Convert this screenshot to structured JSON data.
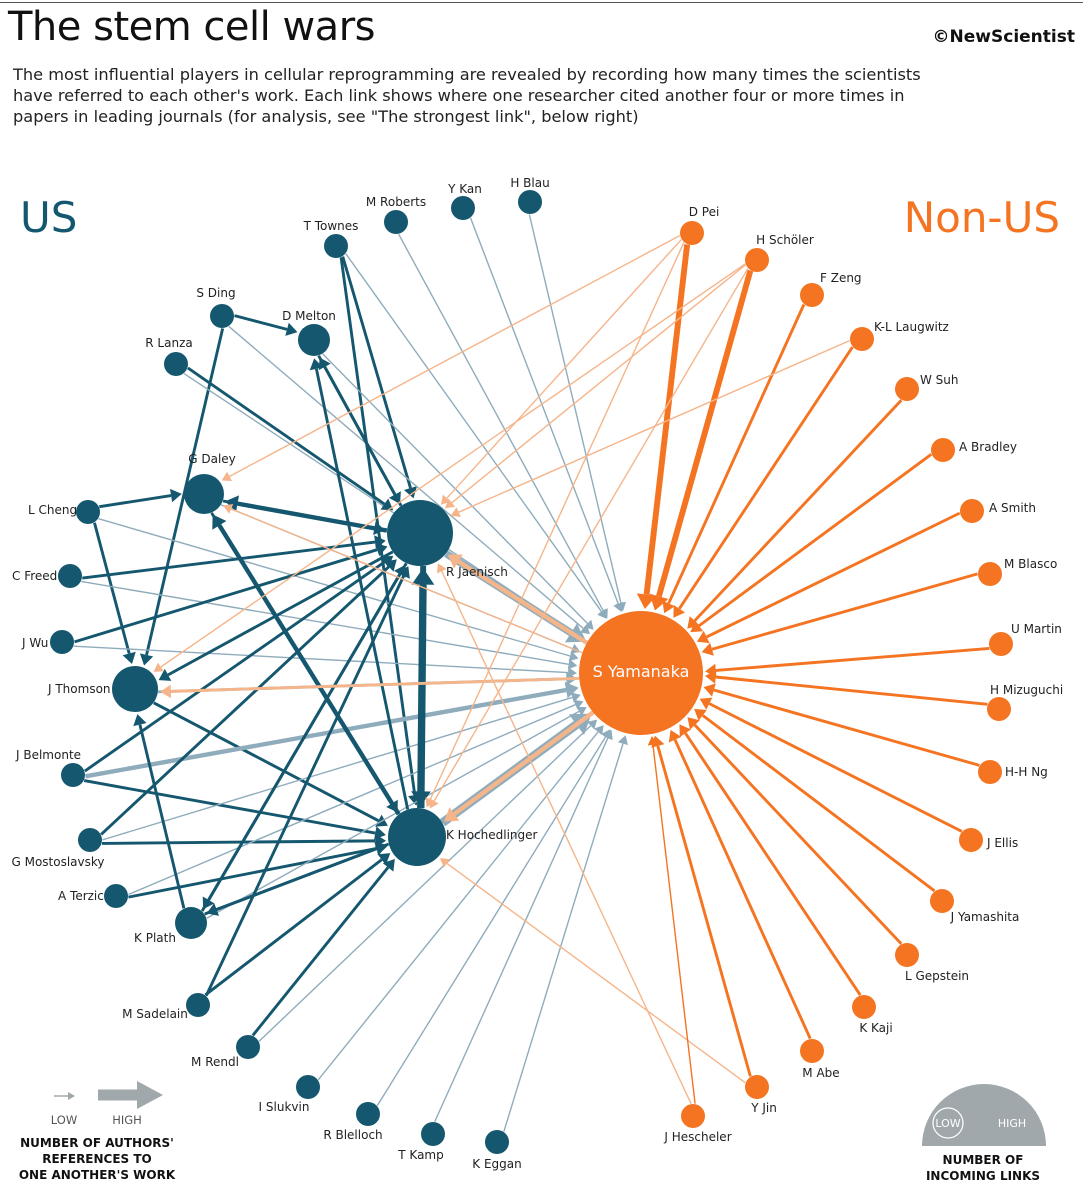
{
  "header": {
    "title": "The stem cell wars",
    "brand": "©NewScientist",
    "subtitle": "The most influential players in cellular reprogramming are revealed by recording how many times the scientists have referred to each other's work. Each link shows where one researcher cited another four or more times in papers in leading journals (for analysis, see \"The strongest link\", below right)"
  },
  "groups": {
    "us": "US",
    "non_us": "Non-US"
  },
  "colors": {
    "us": "#14576e",
    "non_us": "#f47421",
    "us_link": "#8facbc",
    "non_us_link": "#f5b58a",
    "legend_grey": "#a0a8ac"
  },
  "nodes": [
    {
      "id": "mroberts",
      "name": "M Roberts",
      "group": "us",
      "incoming": 0
    },
    {
      "id": "ykan",
      "name": "Y Kan",
      "group": "us",
      "incoming": 0
    },
    {
      "id": "hblau",
      "name": "H Blau",
      "group": "us",
      "incoming": 0
    },
    {
      "id": "ttownes",
      "name": "T Townes",
      "group": "us",
      "incoming": 0
    },
    {
      "id": "sding",
      "name": "S Ding",
      "group": "us",
      "incoming": 0
    },
    {
      "id": "dmelton",
      "name": "D Melton",
      "group": "us",
      "incoming": 2
    },
    {
      "id": "rlanza",
      "name": "R Lanza",
      "group": "us",
      "incoming": 0
    },
    {
      "id": "gdaley",
      "name": "G Daley",
      "group": "us",
      "incoming": 4
    },
    {
      "id": "lcheng",
      "name": "L Cheng",
      "group": "us",
      "incoming": 0
    },
    {
      "id": "cfreed",
      "name": "C Freed",
      "group": "us",
      "incoming": 0
    },
    {
      "id": "jwu",
      "name": "J Wu",
      "group": "us",
      "incoming": 0
    },
    {
      "id": "jthomson",
      "name": "J Thomson",
      "group": "us",
      "incoming": 6
    },
    {
      "id": "jbelmonte",
      "name": "J Belmonte",
      "group": "us",
      "incoming": 0
    },
    {
      "id": "gmosto",
      "name": "G Mostoslavsky",
      "group": "us",
      "incoming": 0
    },
    {
      "id": "aterzic",
      "name": "A Terzic",
      "group": "us",
      "incoming": 0
    },
    {
      "id": "kplath",
      "name": "K Plath",
      "group": "us",
      "incoming": 2
    },
    {
      "id": "msadelain",
      "name": "M Sadelain",
      "group": "us",
      "incoming": 0
    },
    {
      "id": "mrendl",
      "name": "M Rendl",
      "group": "us",
      "incoming": 0
    },
    {
      "id": "islukvin",
      "name": "I Slukvin",
      "group": "us",
      "incoming": 0
    },
    {
      "id": "rblelloch",
      "name": "R Blelloch",
      "group": "us",
      "incoming": 0
    },
    {
      "id": "tkamp",
      "name": "T Kamp",
      "group": "us",
      "incoming": 0
    },
    {
      "id": "keggan",
      "name": "K Eggan",
      "group": "us",
      "incoming": 0
    },
    {
      "id": "rjaenisch",
      "name": "R Jaenisch",
      "group": "us",
      "incoming": 16
    },
    {
      "id": "khoch",
      "name": "K Hochedlinger",
      "group": "us",
      "incoming": 12
    },
    {
      "id": "syamanaka",
      "name": "S Yamanaka",
      "group": "non_us",
      "incoming": 42
    },
    {
      "id": "dpei",
      "name": "D Pei",
      "group": "non_us",
      "incoming": 0
    },
    {
      "id": "hscholer",
      "name": "H Schöler",
      "group": "non_us",
      "incoming": 0
    },
    {
      "id": "fzeng",
      "name": "F Zeng",
      "group": "non_us",
      "incoming": 0
    },
    {
      "id": "klaugwitz",
      "name": "K-L Laugwitz",
      "group": "non_us",
      "incoming": 0
    },
    {
      "id": "wsuh",
      "name": "W Suh",
      "group": "non_us",
      "incoming": 0
    },
    {
      "id": "abradley",
      "name": "A Bradley",
      "group": "non_us",
      "incoming": 0
    },
    {
      "id": "asmith",
      "name": "A Smith",
      "group": "non_us",
      "incoming": 0
    },
    {
      "id": "mblasco",
      "name": "M Blasco",
      "group": "non_us",
      "incoming": 0
    },
    {
      "id": "umartin",
      "name": "U Martin",
      "group": "non_us",
      "incoming": 0
    },
    {
      "id": "hmizuguchi",
      "name": "H Mizuguchi",
      "group": "non_us",
      "incoming": 0
    },
    {
      "id": "hhng",
      "name": "H-H Ng",
      "group": "non_us",
      "incoming": 0
    },
    {
      "id": "jellis",
      "name": "J Ellis",
      "group": "non_us",
      "incoming": 0
    },
    {
      "id": "jyamashita",
      "name": "J Yamashita",
      "group": "non_us",
      "incoming": 0
    },
    {
      "id": "lgepstein",
      "name": "L Gepstein",
      "group": "non_us",
      "incoming": 0
    },
    {
      "id": "kkaji",
      "name": "K Kaji",
      "group": "non_us",
      "incoming": 0
    },
    {
      "id": "mabe",
      "name": "M Abe",
      "group": "non_us",
      "incoming": 0
    },
    {
      "id": "yjin",
      "name": "Y Jin",
      "group": "non_us",
      "incoming": 0
    },
    {
      "id": "jhescheler",
      "name": "J Hescheler",
      "group": "non_us",
      "incoming": 0
    }
  ],
  "links": [
    [
      "mroberts",
      "syamanaka",
      1
    ],
    [
      "ykan",
      "syamanaka",
      1
    ],
    [
      "hblau",
      "syamanaka",
      1
    ],
    [
      "ttownes",
      "syamanaka",
      1
    ],
    [
      "ttownes",
      "rjaenisch",
      2
    ],
    [
      "ttownes",
      "khoch",
      2
    ],
    [
      "sding",
      "dmelton",
      2
    ],
    [
      "sding",
      "syamanaka",
      1
    ],
    [
      "sding",
      "jthomson",
      2
    ],
    [
      "dmelton",
      "syamanaka",
      1
    ],
    [
      "dmelton",
      "rjaenisch",
      2
    ],
    [
      "rlanza",
      "syamanaka",
      1
    ],
    [
      "rlanza",
      "rjaenisch",
      2
    ],
    [
      "gdaley",
      "syamanaka",
      1
    ],
    [
      "gdaley",
      "rjaenisch",
      2
    ],
    [
      "gdaley",
      "khoch",
      2
    ],
    [
      "lcheng",
      "gdaley",
      2
    ],
    [
      "lcheng",
      "jthomson",
      2
    ],
    [
      "lcheng",
      "syamanaka",
      1
    ],
    [
      "cfreed",
      "rjaenisch",
      2
    ],
    [
      "cfreed",
      "syamanaka",
      1
    ],
    [
      "jwu",
      "rjaenisch",
      2
    ],
    [
      "jwu",
      "syamanaka",
      1
    ],
    [
      "jthomson",
      "syamanaka",
      2
    ],
    [
      "jthomson",
      "khoch",
      2
    ],
    [
      "jbelmonte",
      "syamanaka",
      3
    ],
    [
      "jbelmonte",
      "khoch",
      2
    ],
    [
      "jbelmonte",
      "rjaenisch",
      2
    ],
    [
      "gmosto",
      "rjaenisch",
      2
    ],
    [
      "gmosto",
      "khoch",
      2
    ],
    [
      "gmosto",
      "syamanaka",
      1
    ],
    [
      "aterzic",
      "syamanaka",
      1
    ],
    [
      "aterzic",
      "khoch",
      2
    ],
    [
      "kplath",
      "rjaenisch",
      2
    ],
    [
      "kplath",
      "khoch",
      2
    ],
    [
      "kplath",
      "syamanaka",
      1
    ],
    [
      "kplath",
      "jthomson",
      2
    ],
    [
      "msadelain",
      "rjaenisch",
      2
    ],
    [
      "msadelain",
      "khoch",
      2
    ],
    [
      "mrendl",
      "khoch",
      2
    ],
    [
      "mrendl",
      "syamanaka",
      1
    ],
    [
      "islukvin",
      "syamanaka",
      1
    ],
    [
      "rblelloch",
      "syamanaka",
      1
    ],
    [
      "tkamp",
      "syamanaka",
      1
    ],
    [
      "keggan",
      "syamanaka",
      1
    ],
    [
      "rjaenisch",
      "syamanaka",
      5
    ],
    [
      "rjaenisch",
      "khoch",
      4
    ],
    [
      "rjaenisch",
      "gdaley",
      3
    ],
    [
      "rjaenisch",
      "jthomson",
      2
    ],
    [
      "rjaenisch",
      "kplath",
      2
    ],
    [
      "rjaenisch",
      "dmelton",
      2
    ],
    [
      "khoch",
      "syamanaka",
      6
    ],
    [
      "khoch",
      "rjaenisch",
      5
    ],
    [
      "khoch",
      "gdaley",
      3
    ],
    [
      "khoch",
      "kplath",
      2
    ],
    [
      "khoch",
      "dmelton",
      2
    ],
    [
      "syamanaka",
      "rjaenisch",
      3
    ],
    [
      "syamanaka",
      "khoch",
      3
    ],
    [
      "syamanaka",
      "jthomson",
      2
    ],
    [
      "syamanaka",
      "gdaley",
      1
    ],
    [
      "dpei",
      "syamanaka",
      4
    ],
    [
      "dpei",
      "rjaenisch",
      1
    ],
    [
      "dpei",
      "khoch",
      1
    ],
    [
      "dpei",
      "gdaley",
      1
    ],
    [
      "hscholer",
      "syamanaka",
      4
    ],
    [
      "hscholer",
      "rjaenisch",
      1
    ],
    [
      "hscholer",
      "khoch",
      1
    ],
    [
      "hscholer",
      "jthomson",
      1
    ],
    [
      "fzeng",
      "syamanaka",
      2
    ],
    [
      "klaugwitz",
      "syamanaka",
      2
    ],
    [
      "klaugwitz",
      "rjaenisch",
      1
    ],
    [
      "wsuh",
      "syamanaka",
      2
    ],
    [
      "abradley",
      "syamanaka",
      2
    ],
    [
      "asmith",
      "syamanaka",
      2
    ],
    [
      "mblasco",
      "syamanaka",
      2
    ],
    [
      "umartin",
      "syamanaka",
      2
    ],
    [
      "hmizuguchi",
      "syamanaka",
      2
    ],
    [
      "hhng",
      "syamanaka",
      2
    ],
    [
      "jellis",
      "syamanaka",
      2
    ],
    [
      "jyamashita",
      "syamanaka",
      2
    ],
    [
      "lgepstein",
      "syamanaka",
      2
    ],
    [
      "kkaji",
      "syamanaka",
      2
    ],
    [
      "mabe",
      "syamanaka",
      2
    ],
    [
      "yjin",
      "syamanaka",
      2
    ],
    [
      "yjin",
      "khoch",
      1
    ],
    [
      "jhescheler",
      "syamanaka",
      1
    ],
    [
      "jhescheler",
      "rjaenisch",
      1
    ]
  ],
  "legend": {
    "low": "LOW",
    "high": "HIGH",
    "refs_title_1": "NUMBER OF AUTHORS'",
    "refs_title_2": "REFERENCES TO",
    "refs_title_3": "ONE ANOTHER'S WORK",
    "links_low": "LOW",
    "links_high": "HIGH",
    "links_title_1": "NUMBER OF",
    "links_title_2": "INCOMING LINKS"
  }
}
